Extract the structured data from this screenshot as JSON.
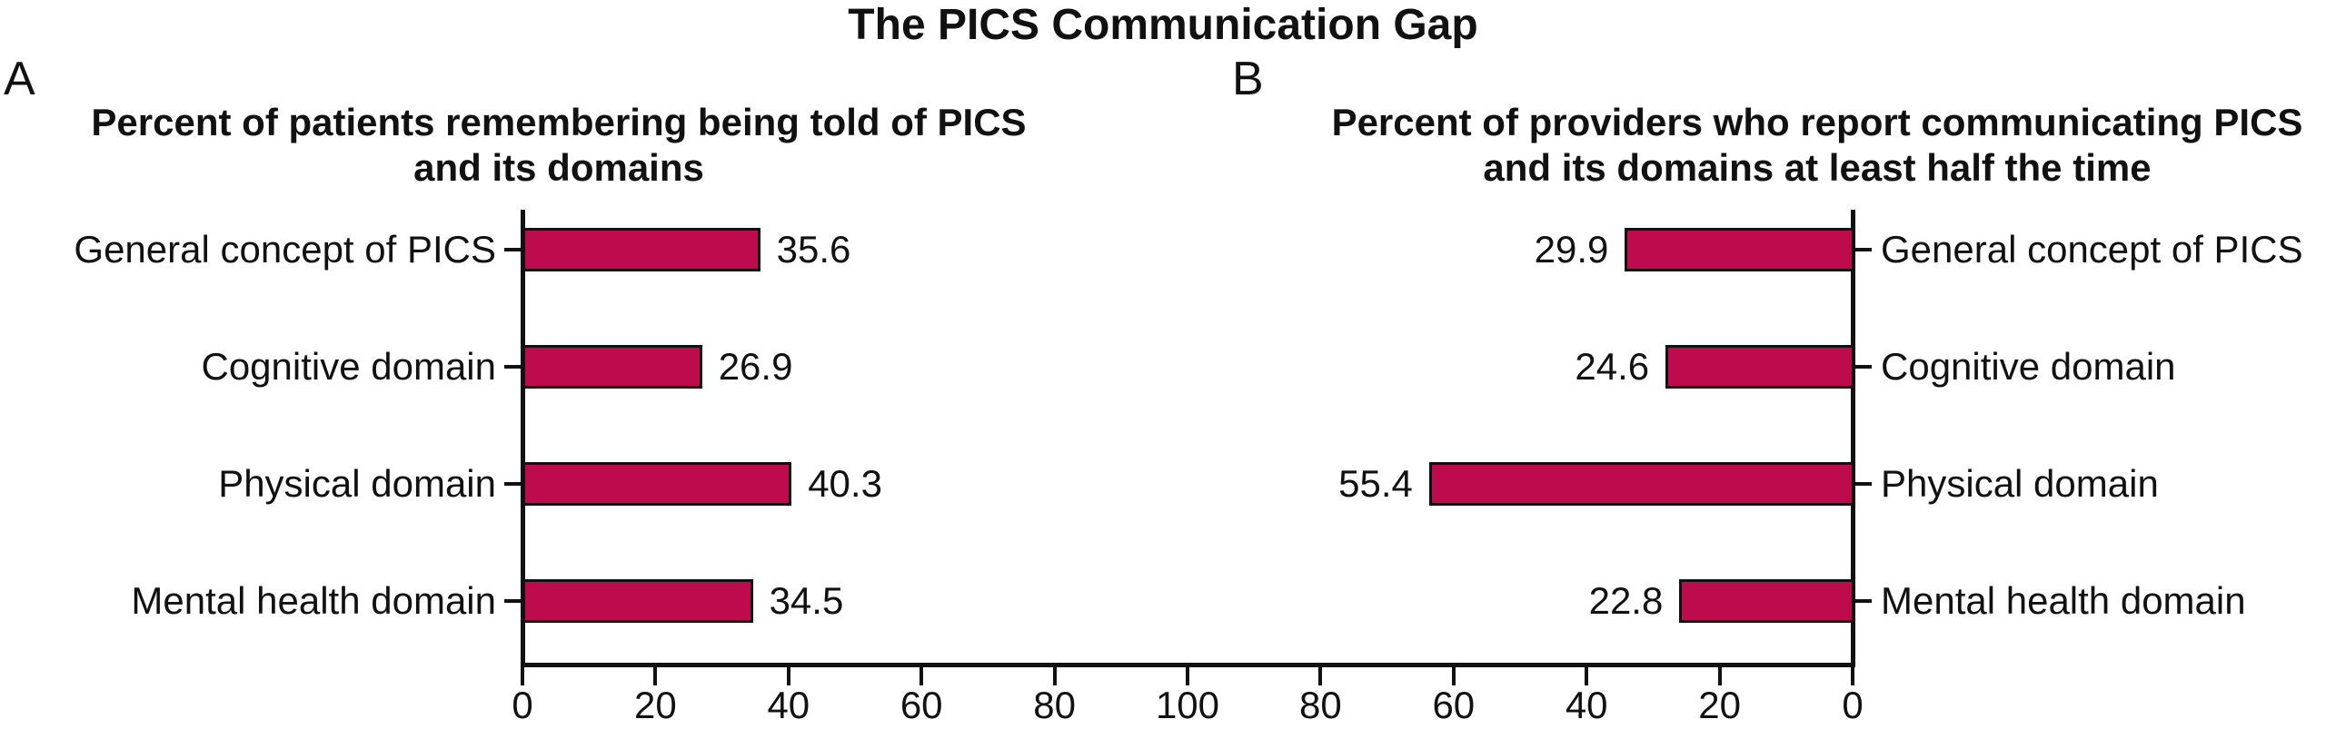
{
  "title": "The PICS Communication Gap",
  "colors": {
    "bar": "#BE0B4E",
    "bar_border": "#111111",
    "axis": "#111111",
    "text": "#111111",
    "background": "#FFFFFF"
  },
  "axis": {
    "shared": true,
    "tick_labels": [
      "0",
      "20",
      "40",
      "60",
      "80",
      "100",
      "80",
      "60",
      "40",
      "20",
      "0"
    ],
    "tick_step": 20
  },
  "chart_data": [
    {
      "type": "bar",
      "orientation": "horizontal",
      "panel_label": "A",
      "title": "Percent of patients remembering being told of PICS and its domains",
      "title_lines": [
        "Percent of patients remembering being told of PICS",
        "and its domains"
      ],
      "categories": [
        "General concept of PICS",
        "Cognitive domain",
        "Physical domain",
        "Mental health domain"
      ],
      "values": [
        35.6,
        26.9,
        40.3,
        34.5
      ],
      "xlabel": "",
      "ylabel": "",
      "xlim": [
        0,
        100
      ],
      "axis_reversed": false,
      "grid": false,
      "legend": false,
      "bar_color": "#BE0B4E"
    },
    {
      "type": "bar",
      "orientation": "horizontal",
      "panel_label": "B",
      "title": "Percent of providers who report communicating PICS and its domains at least half the time",
      "title_lines": [
        "Percent of providers who report communicating PICS",
        "and its domains at least half the time"
      ],
      "categories": [
        "General concept of PICS",
        "Cognitive domain",
        "Physical domain",
        "Mental health domain"
      ],
      "values": [
        29.9,
        24.6,
        55.4,
        22.8
      ],
      "xlabel": "",
      "ylabel": "",
      "xlim": [
        0,
        100
      ],
      "axis_reversed": true,
      "grid": false,
      "legend": false,
      "bar_color": "#BE0B4E"
    }
  ]
}
